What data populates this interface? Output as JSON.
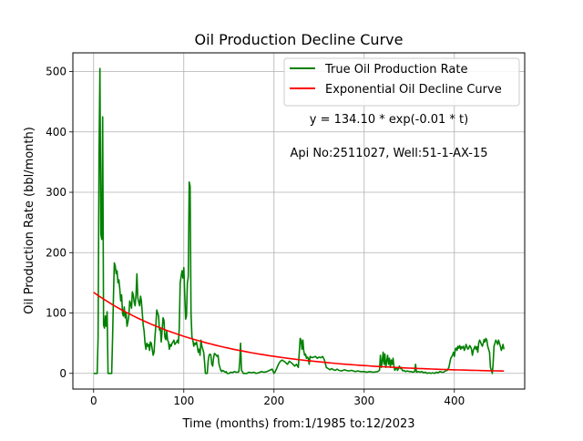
{
  "chart_data": {
    "type": "line",
    "title": "Oil Production Decline Curve",
    "xlabel": "Time (months) from:1/1985 to:12/2023",
    "ylabel": "Oil Production Rate (bbl/month)",
    "xlim": [
      -23,
      478
    ],
    "ylim": [
      -26,
      531
    ],
    "xticks": [
      0,
      100,
      200,
      300,
      400
    ],
    "yticks": [
      0,
      100,
      200,
      300,
      400,
      500
    ],
    "grid": true,
    "legend_position": "top-right",
    "annotations": [
      "y = 134.10 * exp(-0.01 * t)",
      "Api No:2511027, Well:51-1-AX-15"
    ],
    "fit": {
      "a": 134.1,
      "b": 0.0078,
      "t_start": 0,
      "t_end": 455
    },
    "series": [
      {
        "name": "True Oil Production Rate",
        "color": "#008000",
        "kind": "line",
        "points": [
          [
            0,
            0
          ],
          [
            4,
            0
          ],
          [
            5,
            60
          ],
          [
            6,
            360
          ],
          [
            7,
            505
          ],
          [
            8,
            230
          ],
          [
            9,
            222
          ],
          [
            10,
            425
          ],
          [
            11,
            80
          ],
          [
            12,
            75
          ],
          [
            13,
            95
          ],
          [
            14,
            78
          ],
          [
            15,
            102
          ],
          [
            16,
            0
          ],
          [
            20,
            0
          ],
          [
            21,
            60
          ],
          [
            22,
            130
          ],
          [
            23,
            183
          ],
          [
            24,
            178
          ],
          [
            25,
            165
          ],
          [
            26,
            170
          ],
          [
            27,
            150
          ],
          [
            28,
            155
          ],
          [
            29,
            140
          ],
          [
            30,
            120
          ],
          [
            31,
            130
          ],
          [
            32,
            100
          ],
          [
            33,
            95
          ],
          [
            34,
            110
          ],
          [
            35,
            92
          ],
          [
            36,
            100
          ],
          [
            37,
            78
          ],
          [
            38,
            85
          ],
          [
            39,
            95
          ],
          [
            40,
            120
          ],
          [
            41,
            115
          ],
          [
            42,
            108
          ],
          [
            43,
            135
          ],
          [
            44,
            130
          ],
          [
            45,
            118
          ],
          [
            46,
            112
          ],
          [
            47,
            130
          ],
          [
            48,
            165
          ],
          [
            49,
            125
          ],
          [
            50,
            118
          ],
          [
            51,
            112
          ],
          [
            52,
            128
          ],
          [
            53,
            120
          ],
          [
            54,
            100
          ],
          [
            55,
            80
          ],
          [
            56,
            70
          ],
          [
            57,
            50
          ],
          [
            58,
            40
          ],
          [
            59,
            50
          ],
          [
            60,
            45
          ],
          [
            61,
            48
          ],
          [
            62,
            38
          ],
          [
            63,
            52
          ],
          [
            64,
            50
          ],
          [
            65,
            40
          ],
          [
            66,
            30
          ],
          [
            67,
            35
          ],
          [
            68,
            60
          ],
          [
            69,
            80
          ],
          [
            70,
            105
          ],
          [
            71,
            100
          ],
          [
            72,
            95
          ],
          [
            73,
            72
          ],
          [
            74,
            75
          ],
          [
            75,
            52
          ],
          [
            76,
            72
          ],
          [
            77,
            92
          ],
          [
            78,
            88
          ],
          [
            79,
            60
          ],
          [
            80,
            56
          ],
          [
            81,
            70
          ],
          [
            82,
            55
          ],
          [
            83,
            52
          ],
          [
            84,
            40
          ],
          [
            85,
            48
          ],
          [
            86,
            45
          ],
          [
            87,
            50
          ],
          [
            88,
            52
          ],
          [
            89,
            55
          ],
          [
            90,
            48
          ],
          [
            91,
            50
          ],
          [
            92,
            52
          ],
          [
            93,
            55
          ],
          [
            94,
            50
          ],
          [
            95,
            75
          ],
          [
            96,
            150
          ],
          [
            97,
            160
          ],
          [
            98,
            170
          ],
          [
            99,
            158
          ],
          [
            100,
            175
          ],
          [
            101,
            130
          ],
          [
            102,
            90
          ],
          [
            103,
            95
          ],
          [
            104,
            150
          ],
          [
            105,
            160
          ],
          [
            106,
            317
          ],
          [
            107,
            310
          ],
          [
            108,
            100
          ],
          [
            109,
            60
          ],
          [
            110,
            55
          ],
          [
            111,
            45
          ],
          [
            112,
            50
          ],
          [
            113,
            48
          ],
          [
            114,
            52
          ],
          [
            115,
            45
          ],
          [
            116,
            35
          ],
          [
            117,
            40
          ],
          [
            118,
            30
          ],
          [
            119,
            55
          ],
          [
            120,
            45
          ],
          [
            121,
            40
          ],
          [
            122,
            35
          ],
          [
            123,
            20
          ],
          [
            124,
            0
          ],
          [
            126,
            0
          ],
          [
            127,
            20
          ],
          [
            128,
            30
          ],
          [
            129,
            32
          ],
          [
            130,
            30
          ],
          [
            131,
            15
          ],
          [
            132,
            12
          ],
          [
            133,
            25
          ],
          [
            134,
            33
          ],
          [
            135,
            32
          ],
          [
            136,
            30
          ],
          [
            137,
            28
          ],
          [
            138,
            30
          ],
          [
            139,
            15
          ],
          [
            140,
            10
          ],
          [
            141,
            5
          ],
          [
            142,
            3
          ],
          [
            143,
            5
          ],
          [
            144,
            4
          ],
          [
            145,
            3
          ],
          [
            146,
            2
          ],
          [
            147,
            3
          ],
          [
            148,
            0
          ],
          [
            150,
            0
          ],
          [
            152,
            2
          ],
          [
            154,
            1
          ],
          [
            156,
            3
          ],
          [
            158,
            2
          ],
          [
            160,
            2
          ],
          [
            161,
            3
          ],
          [
            162,
            20
          ],
          [
            163,
            50
          ],
          [
            164,
            5
          ],
          [
            165,
            3
          ],
          [
            166,
            0
          ],
          [
            170,
            0
          ],
          [
            172,
            2
          ],
          [
            175,
            1
          ],
          [
            178,
            2
          ],
          [
            180,
            0
          ],
          [
            183,
            1
          ],
          [
            186,
            3
          ],
          [
            189,
            2
          ],
          [
            192,
            3
          ],
          [
            195,
            5
          ],
          [
            198,
            7
          ],
          [
            200,
            0
          ],
          [
            201,
            2
          ],
          [
            203,
            8
          ],
          [
            205,
            15
          ],
          [
            207,
            20
          ],
          [
            209,
            22
          ],
          [
            211,
            20
          ],
          [
            213,
            18
          ],
          [
            215,
            15
          ],
          [
            217,
            20
          ],
          [
            219,
            18
          ],
          [
            221,
            15
          ],
          [
            223,
            12
          ],
          [
            225,
            15
          ],
          [
            227,
            10
          ],
          [
            229,
            58
          ],
          [
            230,
            55
          ],
          [
            231,
            40
          ],
          [
            232,
            55
          ],
          [
            233,
            38
          ],
          [
            234,
            30
          ],
          [
            235,
            32
          ],
          [
            236,
            25
          ],
          [
            237,
            27
          ],
          [
            238,
            25
          ],
          [
            239,
            15
          ],
          [
            240,
            28
          ],
          [
            242,
            26
          ],
          [
            244,
            27
          ],
          [
            246,
            28
          ],
          [
            248,
            25
          ],
          [
            250,
            27
          ],
          [
            252,
            26
          ],
          [
            254,
            28
          ],
          [
            256,
            22
          ],
          [
            258,
            10
          ],
          [
            260,
            8
          ],
          [
            262,
            6
          ],
          [
            264,
            8
          ],
          [
            266,
            6
          ],
          [
            268,
            5
          ],
          [
            270,
            7
          ],
          [
            272,
            5
          ],
          [
            275,
            4
          ],
          [
            278,
            6
          ],
          [
            280,
            5
          ],
          [
            283,
            4
          ],
          [
            286,
            5
          ],
          [
            290,
            3
          ],
          [
            293,
            4
          ],
          [
            296,
            3
          ],
          [
            300,
            3
          ],
          [
            303,
            2
          ],
          [
            306,
            3
          ],
          [
            310,
            2
          ],
          [
            315,
            3
          ],
          [
            317,
            5
          ],
          [
            318,
            30
          ],
          [
            319,
            10
          ],
          [
            320,
            20
          ],
          [
            321,
            35
          ],
          [
            322,
            15
          ],
          [
            323,
            32
          ],
          [
            324,
            10
          ],
          [
            325,
            20
          ],
          [
            326,
            30
          ],
          [
            327,
            15
          ],
          [
            328,
            25
          ],
          [
            329,
            10
          ],
          [
            330,
            22
          ],
          [
            331,
            15
          ],
          [
            332,
            25
          ],
          [
            333,
            12
          ],
          [
            334,
            5
          ],
          [
            335,
            8
          ],
          [
            336,
            10
          ],
          [
            337,
            5
          ],
          [
            338,
            8
          ],
          [
            339,
            12
          ],
          [
            340,
            8
          ],
          [
            341,
            10
          ],
          [
            342,
            6
          ],
          [
            343,
            4
          ],
          [
            344,
            5
          ],
          [
            346,
            3
          ],
          [
            348,
            4
          ],
          [
            350,
            3
          ],
          [
            352,
            3
          ],
          [
            354,
            2
          ],
          [
            356,
            3
          ],
          [
            357,
            15
          ],
          [
            358,
            2
          ],
          [
            360,
            3
          ],
          [
            362,
            2
          ],
          [
            364,
            3
          ],
          [
            366,
            1
          ],
          [
            368,
            2
          ],
          [
            370,
            0
          ],
          [
            372,
            1
          ],
          [
            374,
            0
          ],
          [
            376,
            1
          ],
          [
            378,
            0
          ],
          [
            380,
            2
          ],
          [
            382,
            1
          ],
          [
            384,
            3
          ],
          [
            386,
            2
          ],
          [
            388,
            2
          ],
          [
            390,
            4
          ],
          [
            392,
            5
          ],
          [
            394,
            10
          ],
          [
            396,
            25
          ],
          [
            398,
            30
          ],
          [
            399,
            35
          ],
          [
            400,
            28
          ],
          [
            401,
            40
          ],
          [
            402,
            42
          ],
          [
            403,
            38
          ],
          [
            404,
            45
          ],
          [
            405,
            42
          ],
          [
            406,
            46
          ],
          [
            407,
            40
          ],
          [
            408,
            44
          ],
          [
            409,
            42
          ],
          [
            410,
            45
          ],
          [
            411,
            38
          ],
          [
            412,
            42
          ],
          [
            413,
            48
          ],
          [
            414,
            44
          ],
          [
            415,
            40
          ],
          [
            416,
            42
          ],
          [
            417,
            46
          ],
          [
            418,
            44
          ],
          [
            419,
            40
          ],
          [
            420,
            30
          ],
          [
            421,
            38
          ],
          [
            422,
            42
          ],
          [
            423,
            45
          ],
          [
            424,
            40
          ],
          [
            425,
            44
          ],
          [
            426,
            35
          ],
          [
            427,
            50
          ],
          [
            428,
            55
          ],
          [
            429,
            52
          ],
          [
            430,
            48
          ],
          [
            431,
            45
          ],
          [
            432,
            50
          ],
          [
            433,
            56
          ],
          [
            434,
            52
          ],
          [
            435,
            58
          ],
          [
            436,
            55
          ],
          [
            437,
            45
          ],
          [
            438,
            40
          ],
          [
            439,
            35
          ],
          [
            440,
            10
          ],
          [
            441,
            5
          ],
          [
            442,
            0
          ],
          [
            443,
            15
          ],
          [
            444,
            45
          ],
          [
            445,
            50
          ],
          [
            446,
            55
          ],
          [
            447,
            52
          ],
          [
            448,
            48
          ],
          [
            449,
            55
          ],
          [
            450,
            50
          ],
          [
            451,
            45
          ],
          [
            452,
            38
          ],
          [
            453,
            42
          ],
          [
            454,
            48
          ],
          [
            455,
            40
          ]
        ]
      },
      {
        "name": "Exponential Oil Decline Curve",
        "color": "#ff0000",
        "kind": "fit"
      }
    ]
  }
}
